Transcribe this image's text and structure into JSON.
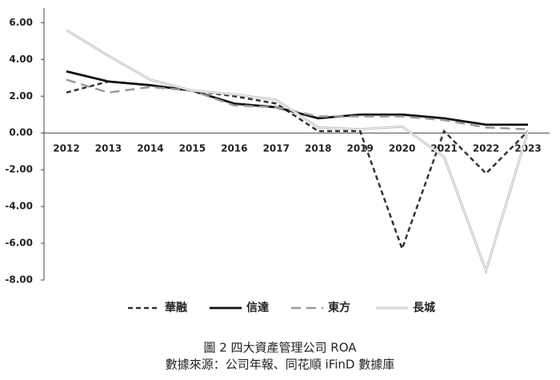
{
  "chart_data": {
    "type": "line",
    "categories": [
      "2012",
      "2013",
      "2014",
      "2015",
      "2016",
      "2017",
      "2018",
      "2019",
      "2020",
      "2021",
      "2022",
      "2023"
    ],
    "series": [
      {
        "name": "華融",
        "color": "#333333",
        "style": "dashed",
        "values": [
          2.2,
          2.8,
          2.6,
          2.3,
          2.0,
          1.6,
          0.1,
          0.1,
          -6.3,
          0.1,
          -2.2,
          0.1
        ]
      },
      {
        "name": "信達",
        "color": "#111111",
        "style": "solid",
        "values": [
          3.35,
          2.8,
          2.6,
          2.3,
          1.6,
          1.4,
          0.8,
          1.0,
          1.0,
          0.8,
          0.45,
          0.45
        ]
      },
      {
        "name": "東方",
        "color": "#999999",
        "style": "longdash",
        "values": [
          2.9,
          2.2,
          2.5,
          2.3,
          1.5,
          1.4,
          0.9,
          0.9,
          0.9,
          0.7,
          0.3,
          0.2
        ]
      },
      {
        "name": "長城",
        "color": "#b8b8b8",
        "style": "double",
        "values": [
          5.6,
          4.2,
          2.9,
          2.3,
          2.1,
          1.8,
          0.3,
          0.2,
          0.35,
          -1.3,
          -7.5,
          0.1
        ]
      }
    ],
    "ylim": [
      -8,
      6.8
    ],
    "yticks": [
      {
        "value": -8,
        "label": "-8.00"
      },
      {
        "value": -6,
        "label": "-6.00"
      },
      {
        "value": -4,
        "label": "-4.00"
      },
      {
        "value": -2,
        "label": "-2.00"
      },
      {
        "value": 0,
        "label": "0.00"
      },
      {
        "value": 2,
        "label": "2.00"
      },
      {
        "value": 4,
        "label": "4.00"
      },
      {
        "value": 6,
        "label": "6.00"
      }
    ],
    "legend": "bottom",
    "caption": "圖 2 四大資產管理公司 ROA",
    "source": "數據來源：公司年報、同花順 iFinD 數據庫"
  }
}
